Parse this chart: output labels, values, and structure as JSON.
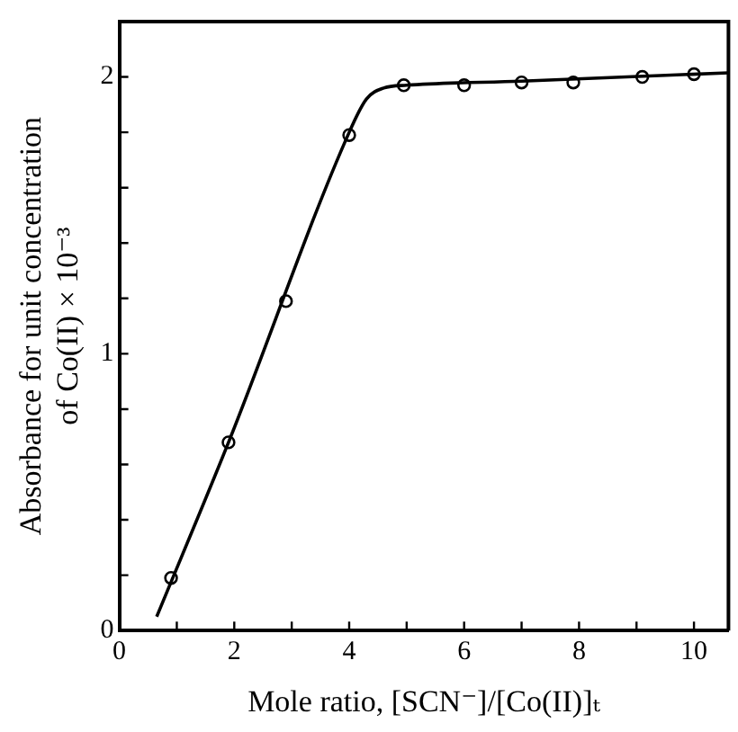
{
  "chart_data": {
    "type": "scatter",
    "xlabel": "Mole ratio, [SCN⁻]/[Co(II)]ₜ",
    "ylabel": "Absorbance for unit concentration\nof Co(II) × 10⁻³",
    "xlim": [
      0,
      10.6
    ],
    "ylim": [
      0,
      2.2
    ],
    "xticks": [
      0,
      {
        "value": 1,
        "label": null
      },
      2,
      {
        "value": 3,
        "label": null
      },
      4,
      {
        "value": 5,
        "label": null
      },
      6,
      {
        "value": 7,
        "label": null
      },
      8,
      {
        "value": 9,
        "label": null
      },
      10
    ],
    "yticks": [
      0,
      {
        "value": 0.2,
        "label": null
      },
      {
        "value": 0.4,
        "label": null
      },
      {
        "value": 0.6,
        "label": null
      },
      {
        "value": 0.8,
        "label": null
      },
      1,
      {
        "value": 1.2,
        "label": null
      },
      {
        "value": 1.4,
        "label": null
      },
      {
        "value": 1.6,
        "label": null
      },
      {
        "value": 1.8,
        "label": null
      },
      2
    ],
    "grid": false,
    "legend": false,
    "marker": "circle",
    "series": [
      {
        "type": "line",
        "color": "#000000",
        "marker": "none",
        "x": [
          0.65,
          1.9,
          4.0,
          4.3,
          4.6,
          5.0,
          7.0,
          10.6
        ],
        "values": [
          0.05,
          0.68,
          1.8,
          1.92,
          1.96,
          1.97,
          1.985,
          2.015
        ]
      },
      {
        "type": "scatter",
        "color": "#000000",
        "x": [
          0.9,
          1.9,
          2.9,
          4.0,
          4.95,
          6.0,
          7.0,
          7.9,
          9.1,
          10.0
        ],
        "values": [
          0.19,
          0.68,
          1.19,
          1.79,
          1.97,
          1.97,
          1.98,
          1.98,
          2.0,
          2.01
        ]
      }
    ]
  }
}
